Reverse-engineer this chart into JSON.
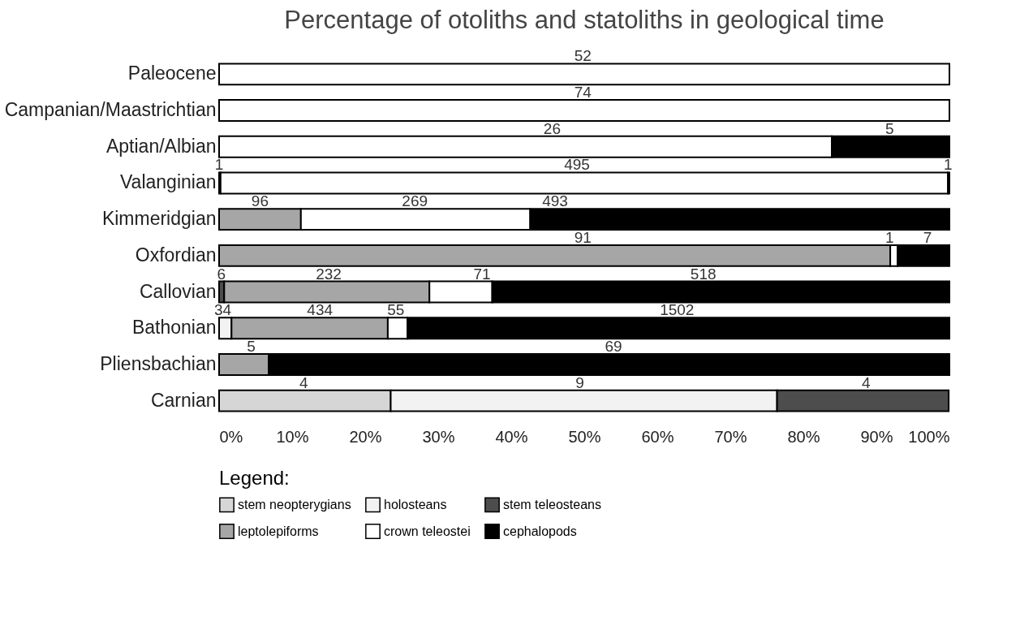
{
  "chart_data": {
    "type": "bar",
    "title": "Percentage of otoliths and statoliths in geological time",
    "orientation": "horizontal",
    "stacked": true,
    "categories": [
      "Paleocene",
      "Campanian/Maastrichtian",
      "Aptian/Albian",
      "Valanginian",
      "Kimmeridgian",
      "Oxfordian",
      "Callovian",
      "Bathonian",
      "Pliensbachian",
      "Carnian"
    ],
    "series": [
      {
        "name": "stem neopterygians",
        "color": "#d6d6d6",
        "values": [
          null,
          null,
          null,
          null,
          null,
          null,
          null,
          null,
          null,
          23.5
        ]
      },
      {
        "name": "holosteans",
        "color": "#f2f2f2",
        "values": [
          null,
          null,
          null,
          null,
          null,
          null,
          null,
          1.7,
          null,
          52.9
        ]
      },
      {
        "name": "stem teleosteans",
        "color": "#4d4d4d",
        "values": [
          null,
          null,
          null,
          0.2,
          null,
          null,
          0.7,
          null,
          null,
          23.5
        ]
      },
      {
        "name": "leptolepiforms",
        "color": "#a6a6a6",
        "values": [
          null,
          null,
          null,
          null,
          11.2,
          91.9,
          28.1,
          21.4,
          6.8,
          null
        ]
      },
      {
        "name": "crown teleostei",
        "color": "#ffffff",
        "values": [
          100,
          100,
          83.9,
          99.6,
          31.4,
          1.0,
          8.6,
          2.7,
          null,
          null
        ]
      },
      {
        "name": "cephalopods",
        "color": "#000000",
        "values": [
          null,
          null,
          16.1,
          0.2,
          57.4,
          7.1,
          62.6,
          74.2,
          93.2,
          null
        ]
      }
    ],
    "annotations": [
      {
        "text": "52",
        "x": 49.8,
        "y": "Paleocene"
      },
      {
        "text": "74",
        "x": 49.8,
        "y": "Campanian/Maastrichtian"
      },
      {
        "text": "26",
        "x": 45.6,
        "y": "Aptian/Albian"
      },
      {
        "text": "5",
        "x": 91.8,
        "y": "Aptian/Albian"
      },
      {
        "text": "1",
        "x": 0,
        "y": "Valanginian"
      },
      {
        "text": "495",
        "x": 49,
        "y": "Valanginian"
      },
      {
        "text": "1",
        "x": 99.8,
        "y": "Valanginian"
      },
      {
        "text": "96",
        "x": 5.6,
        "y": "Kimmeridgian"
      },
      {
        "text": "269",
        "x": 26.8,
        "y": "Kimmeridgian"
      },
      {
        "text": "493",
        "x": 46,
        "y": "Kimmeridgian"
      },
      {
        "text": "91",
        "x": 49.8,
        "y": "Oxfordian"
      },
      {
        "text": "1",
        "x": 91.8,
        "y": "Oxfordian"
      },
      {
        "text": "7",
        "x": 97,
        "y": "Oxfordian"
      },
      {
        "text": "6",
        "x": 0.3,
        "y": "Callovian"
      },
      {
        "text": "232",
        "x": 15,
        "y": "Callovian"
      },
      {
        "text": "71",
        "x": 36,
        "y": "Callovian"
      },
      {
        "text": "518",
        "x": 66.3,
        "y": "Callovian"
      },
      {
        "text": "34",
        "x": 0.5,
        "y": "Bathonian"
      },
      {
        "text": "434",
        "x": 13.8,
        "y": "Bathonian"
      },
      {
        "text": "55",
        "x": 24.2,
        "y": "Bathonian"
      },
      {
        "text": "1502",
        "x": 62.7,
        "y": "Bathonian"
      },
      {
        "text": "5",
        "x": 4.4,
        "y": "Pliensbachian"
      },
      {
        "text": "69",
        "x": 54,
        "y": "Pliensbachian"
      },
      {
        "text": "4",
        "x": 11.6,
        "y": "Carnian"
      },
      {
        "text": "9",
        "x": 49.4,
        "y": "Carnian"
      },
      {
        "text": "4",
        "x": 88.6,
        "y": "Carnian"
      }
    ],
    "xlim": [
      0,
      100
    ],
    "xticks": [
      {
        "value": 0,
        "label": "0%"
      },
      {
        "value": 10,
        "label": "10%"
      },
      {
        "value": 20,
        "label": "20%"
      },
      {
        "value": 30,
        "label": "30%"
      },
      {
        "value": 40,
        "label": "40%"
      },
      {
        "value": 50,
        "label": "50%"
      },
      {
        "value": 60,
        "label": "60%"
      },
      {
        "value": 70,
        "label": "70%"
      },
      {
        "value": 80,
        "label": "80%"
      },
      {
        "value": 90,
        "label": "90%"
      },
      {
        "value": 100,
        "label": "100%"
      }
    ],
    "legend": "bottom",
    "legend_title": "Legend:"
  }
}
